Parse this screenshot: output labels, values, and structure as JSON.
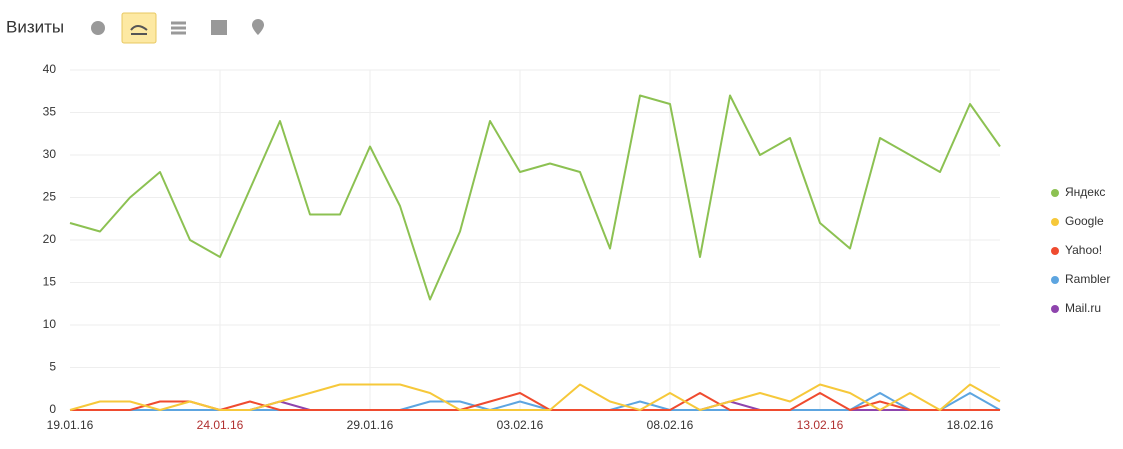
{
  "chart_data": {
    "type": "line",
    "title": "Визиты",
    "categories": [
      "19.01.16",
      null,
      null,
      null,
      null,
      "24.01.16",
      null,
      null,
      null,
      null,
      "29.01.16",
      null,
      null,
      null,
      null,
      "03.02.16",
      null,
      null,
      null,
      null,
      "08.02.16",
      null,
      null,
      null,
      null,
      "13.02.16",
      null,
      null,
      null,
      null,
      "18.02.16",
      null
    ],
    "category_colors": [
      "#333333",
      null,
      null,
      null,
      null,
      "#b03030",
      null,
      null,
      null,
      null,
      "#333333",
      null,
      null,
      null,
      null,
      "#333333",
      null,
      null,
      null,
      null,
      "#333333",
      null,
      null,
      null,
      null,
      "#b03030",
      null,
      null,
      null,
      null,
      "#333333",
      null
    ],
    "series": [
      {
        "name": "Яндекс",
        "color": "#8cc152",
        "values": [
          22,
          21,
          25,
          28,
          20,
          18,
          26,
          34,
          23,
          23,
          31,
          24,
          13,
          21,
          34,
          28,
          29,
          28,
          19,
          37,
          36,
          18,
          37,
          30,
          32,
          22,
          19,
          32,
          30,
          28,
          36,
          31
        ]
      },
      {
        "name": "Google",
        "color": "#f6c83a",
        "values": [
          0,
          1,
          1,
          0,
          1,
          0,
          0,
          1,
          2,
          3,
          3,
          3,
          2,
          0,
          0,
          0,
          0,
          3,
          1,
          0,
          2,
          0,
          1,
          2,
          1,
          3,
          2,
          0,
          2,
          0,
          3,
          1
        ]
      },
      {
        "name": "Yahoo!",
        "color": "#ef4b2f",
        "values": [
          0,
          0,
          0,
          1,
          1,
          0,
          1,
          0,
          0,
          0,
          0,
          0,
          0,
          0,
          1,
          2,
          0,
          0,
          0,
          0,
          0,
          2,
          0,
          0,
          0,
          2,
          0,
          1,
          0,
          0,
          0,
          0
        ]
      },
      {
        "name": "Rambler",
        "color": "#5da5e0",
        "values": [
          0,
          0,
          0,
          0,
          0,
          0,
          0,
          0,
          0,
          0,
          0,
          0,
          1,
          1,
          0,
          1,
          0,
          0,
          0,
          1,
          0,
          0,
          0,
          0,
          0,
          0,
          0,
          2,
          0,
          0,
          2,
          0
        ]
      },
      {
        "name": "Mail.ru",
        "color": "#8e44ad",
        "values": [
          0,
          0,
          0,
          0,
          0,
          0,
          0,
          1,
          0,
          0,
          0,
          0,
          0,
          0,
          0,
          0,
          0,
          0,
          0,
          0,
          0,
          0,
          1,
          0,
          0,
          0,
          0,
          0,
          0,
          0,
          0,
          0
        ]
      }
    ],
    "ylim": [
      0,
      40
    ],
    "yticks": [
      0,
      5,
      10,
      15,
      20,
      25,
      30,
      35,
      40
    ],
    "grid": true,
    "legend": "right"
  }
}
